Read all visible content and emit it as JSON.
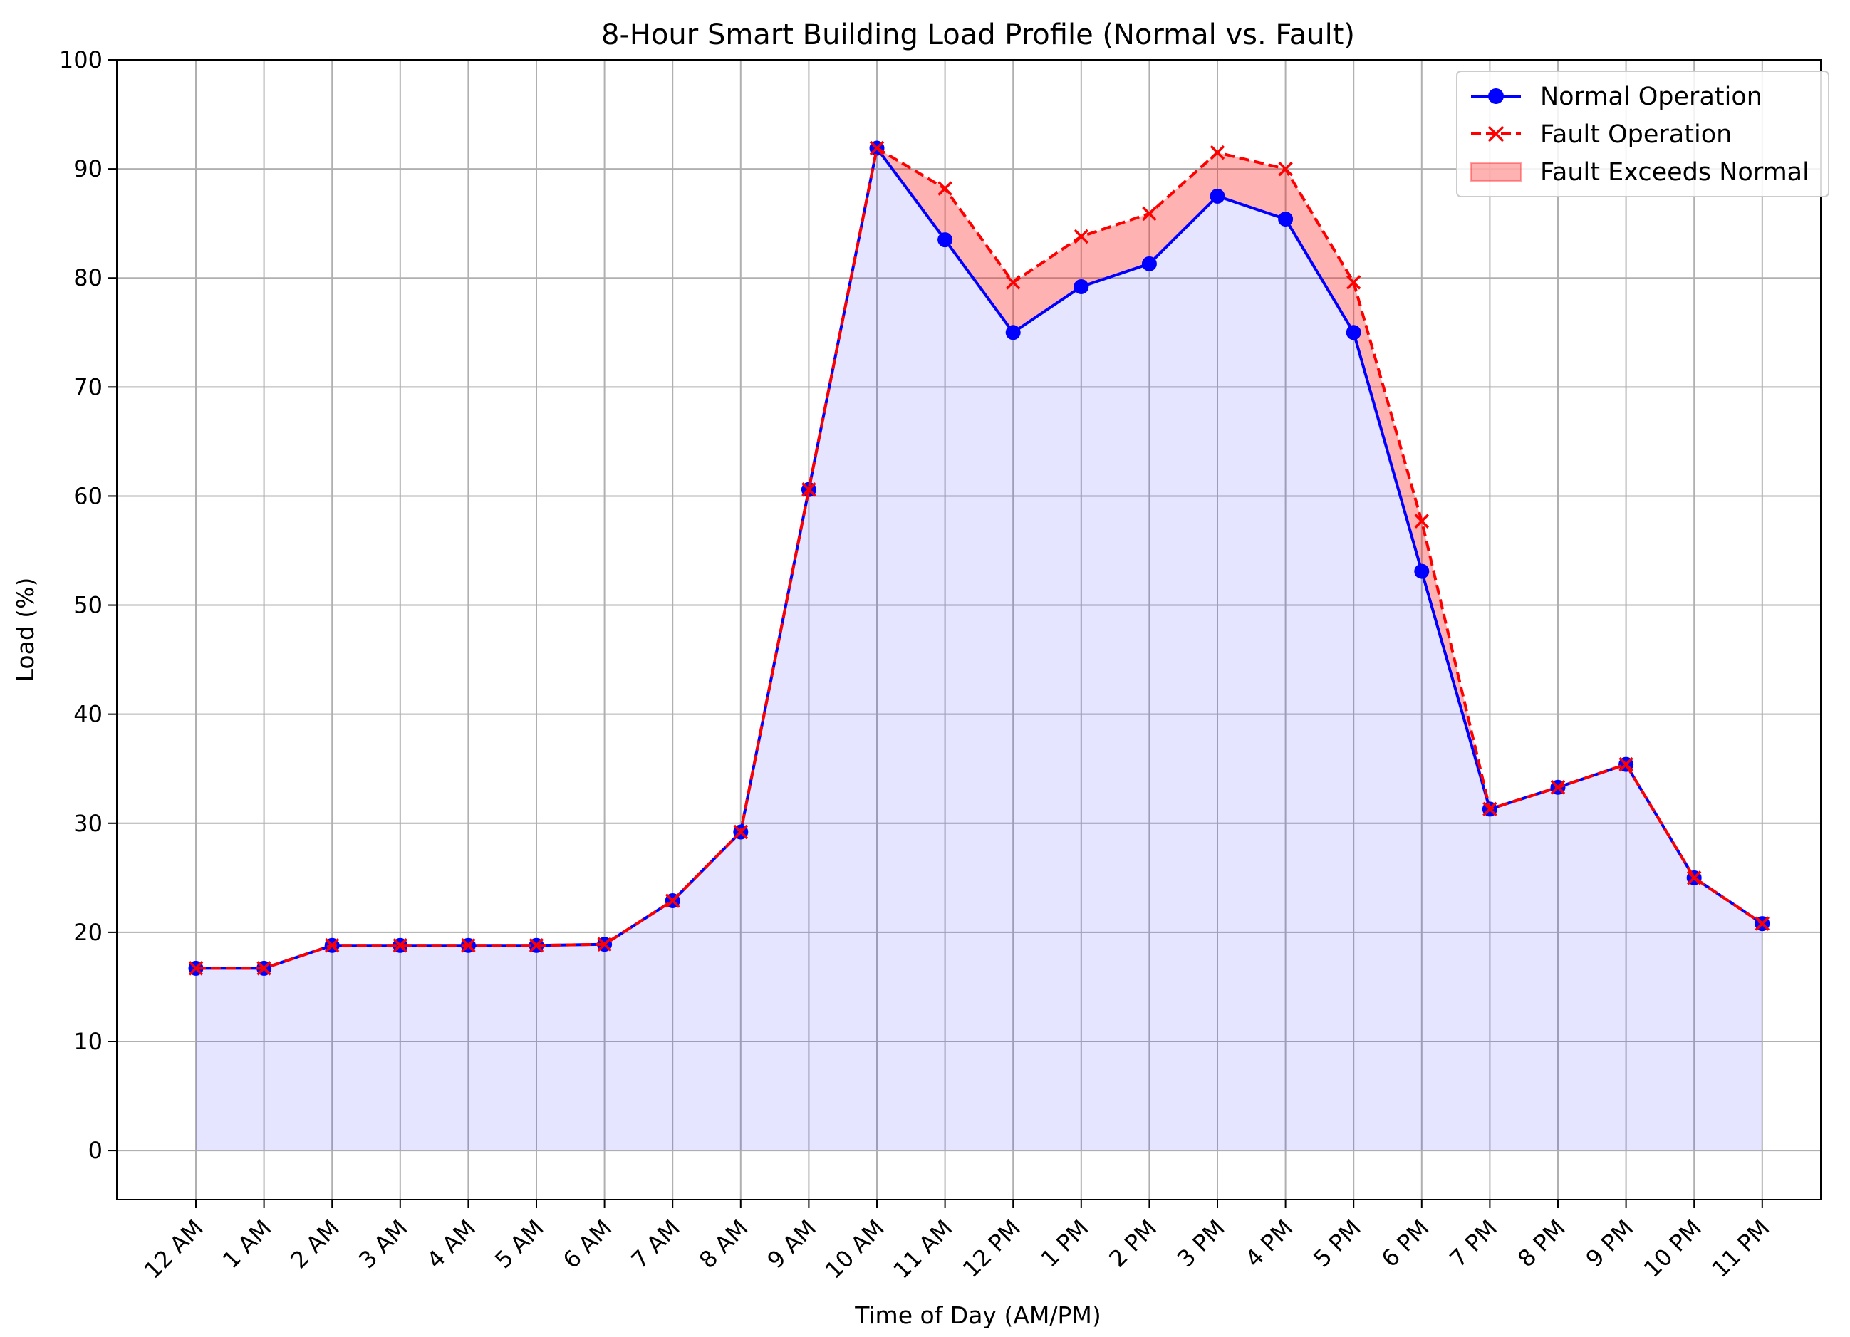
{
  "chart_data": {
    "type": "line",
    "title": "8-Hour Smart Building Load Profile (Normal vs. Fault)",
    "xlabel": "Time of Day (AM/PM)",
    "ylabel": "Load (%)",
    "ylim": [
      -4.5,
      100
    ],
    "yticks": [
      0,
      10,
      20,
      30,
      40,
      50,
      60,
      70,
      80,
      90,
      100
    ],
    "categories": [
      "12 AM",
      "1 AM",
      "2 AM",
      "3 AM",
      "4 AM",
      "5 AM",
      "6 AM",
      "7 AM",
      "8 AM",
      "9 AM",
      "10 AM",
      "11 AM",
      "12 PM",
      "1 PM",
      "2 PM",
      "3 PM",
      "4 PM",
      "5 PM",
      "6 PM",
      "7 PM",
      "8 PM",
      "9 PM",
      "10 PM",
      "11 PM"
    ],
    "series": [
      {
        "name": "Normal Operation",
        "color": "#0000ff",
        "style": "solid",
        "marker": "circle",
        "values": [
          16.7,
          16.7,
          18.8,
          18.8,
          18.8,
          18.8,
          18.9,
          22.9,
          29.2,
          60.6,
          91.9,
          83.5,
          75.0,
          79.2,
          81.3,
          87.5,
          85.4,
          75.0,
          53.1,
          31.3,
          33.3,
          35.4,
          25.0,
          20.8
        ]
      },
      {
        "name": "Fault Operation",
        "color": "#ff0000",
        "style": "dashed",
        "marker": "x",
        "values": [
          16.7,
          16.7,
          18.8,
          18.8,
          18.8,
          18.8,
          18.9,
          22.9,
          29.2,
          60.6,
          91.9,
          88.2,
          79.6,
          83.8,
          85.9,
          91.5,
          90.0,
          79.6,
          57.7,
          31.3,
          33.3,
          35.4,
          25.0,
          20.8
        ]
      }
    ],
    "fill_between": {
      "name": "Fault Exceeds Normal",
      "color": "#ff0000",
      "opacity": 0.3
    },
    "base_fill": {
      "color": "#0000ff",
      "opacity": 0.1
    },
    "grid": true,
    "legend": "top-right"
  }
}
